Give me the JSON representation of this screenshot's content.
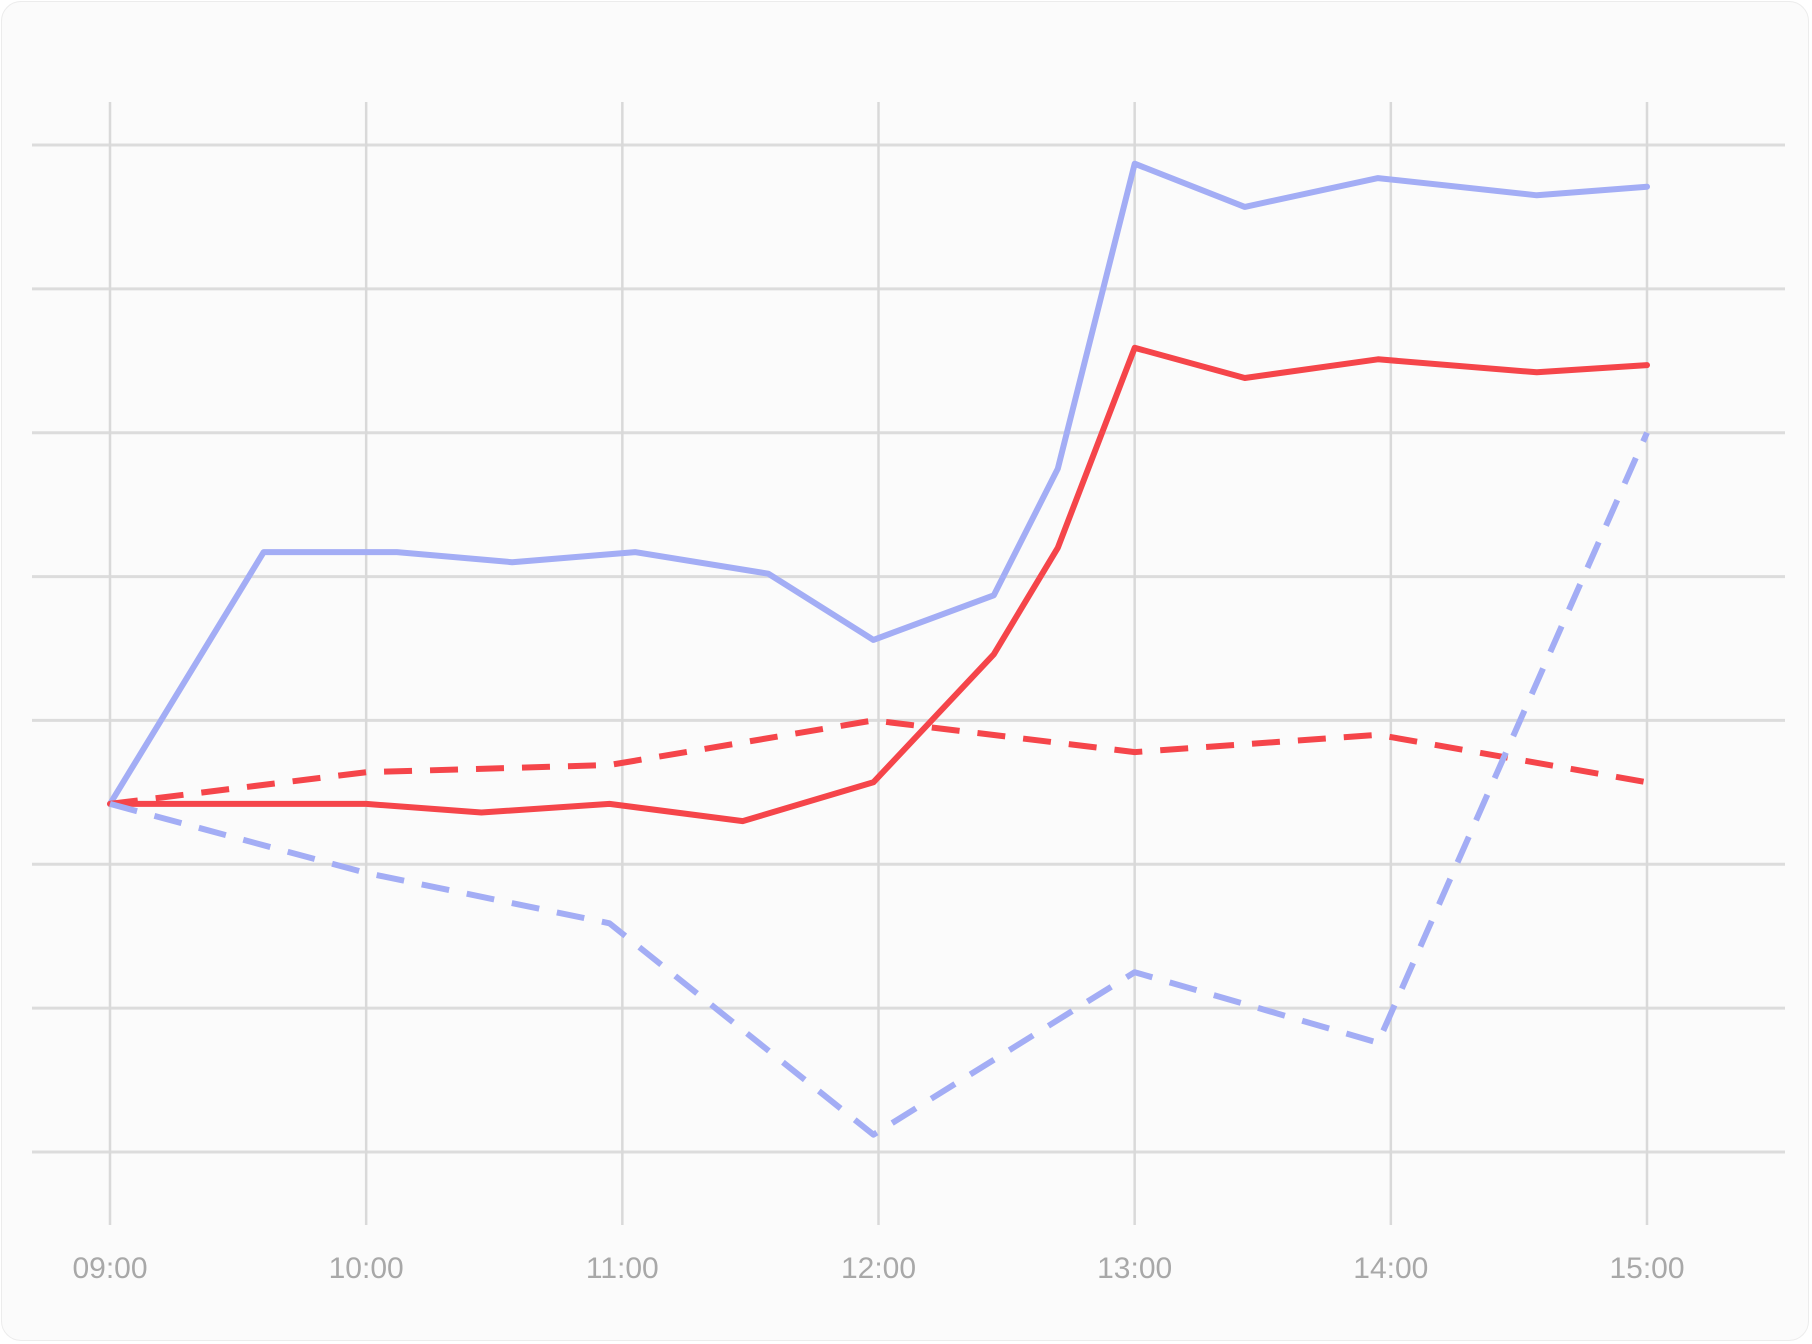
{
  "chart_data": {
    "type": "line",
    "title": "",
    "xlabel": "",
    "ylabel": "",
    "x_ticks": [
      "09:00",
      "10:00",
      "11:00",
      "12:00",
      "13:00",
      "14:00",
      "15:00"
    ],
    "xlim": [
      9.0,
      15.0
    ],
    "ylim": [
      0,
      7
    ],
    "grid": true,
    "legend": "none",
    "series": [
      {
        "color": "#a3adf5",
        "dash": "solid",
        "points": [
          [
            9.0,
            2.42
          ],
          [
            9.6,
            4.17
          ],
          [
            10.12,
            4.17
          ],
          [
            10.57,
            4.1
          ],
          [
            11.05,
            4.17
          ],
          [
            11.57,
            4.02
          ],
          [
            11.98,
            3.56
          ],
          [
            12.45,
            3.87
          ],
          [
            12.7,
            4.75
          ],
          [
            13.0,
            6.87
          ],
          [
            13.43,
            6.57
          ],
          [
            13.95,
            6.77
          ],
          [
            14.57,
            6.65
          ],
          [
            15.0,
            6.71
          ]
        ]
      },
      {
        "color": "#f5454a",
        "dash": "solid",
        "points": [
          [
            9.0,
            2.42
          ],
          [
            10.0,
            2.42
          ],
          [
            10.45,
            2.36
          ],
          [
            10.95,
            2.42
          ],
          [
            11.47,
            2.3
          ],
          [
            11.98,
            2.57
          ],
          [
            12.45,
            3.46
          ],
          [
            12.7,
            4.2
          ],
          [
            13.0,
            5.59
          ],
          [
            13.43,
            5.38
          ],
          [
            13.95,
            5.51
          ],
          [
            14.57,
            5.42
          ],
          [
            15.0,
            5.47
          ]
        ]
      },
      {
        "color": "#f5454a",
        "dash": "dashed",
        "points": [
          [
            9.0,
            2.42
          ],
          [
            10.0,
            2.64
          ],
          [
            10.95,
            2.69
          ],
          [
            11.98,
            3.0
          ],
          [
            13.0,
            2.78
          ],
          [
            13.95,
            2.9
          ],
          [
            15.0,
            2.57
          ]
        ]
      },
      {
        "color": "#a3adf5",
        "dash": "dashed",
        "points": [
          [
            9.0,
            2.42
          ],
          [
            10.0,
            1.94
          ],
          [
            10.95,
            1.59
          ],
          [
            11.98,
            0.12
          ],
          [
            13.0,
            1.25
          ],
          [
            13.95,
            0.76
          ],
          [
            15.0,
            5.0
          ]
        ]
      }
    ]
  }
}
